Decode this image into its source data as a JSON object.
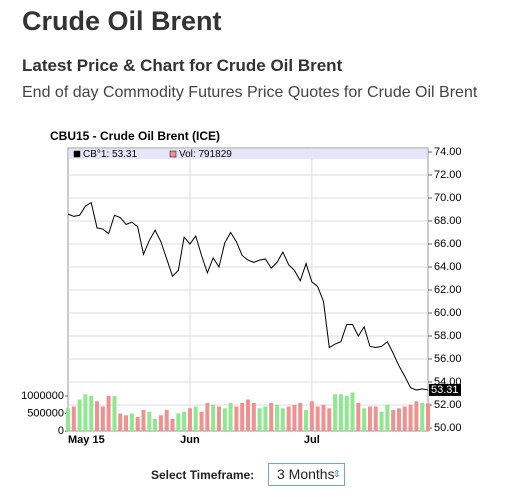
{
  "page": {
    "title": "Crude Oil Brent",
    "subtitle": "Latest Price & Chart for Crude Oil Brent",
    "description": "End of day Commodity Futures Price Quotes for Crude Oil Brent",
    "timeframe_label": "Select Timeframe:",
    "timeframe_value": "3 Months"
  },
  "chart_data": {
    "type": "line",
    "title": "CBU15 - Crude Oil Brent (ICE)",
    "legend": [
      "CB°1: 53.31",
      "Vol: 791829"
    ],
    "categories": [
      "May 15",
      null,
      null,
      null,
      null,
      null,
      null,
      null,
      null,
      null,
      null,
      null,
      null,
      null,
      null,
      null,
      null,
      null,
      null,
      null,
      null,
      "Jun",
      null,
      null,
      null,
      null,
      null,
      null,
      null,
      null,
      null,
      null,
      null,
      null,
      null,
      null,
      null,
      null,
      null,
      null,
      null,
      null,
      "Jul",
      null,
      null,
      null,
      null,
      null,
      null,
      null,
      null,
      null,
      null,
      null,
      null,
      null,
      null,
      null,
      null,
      null,
      null,
      null,
      null
    ],
    "series": [
      {
        "name": "CB°1",
        "color": "#000000",
        "values": [
          68.6,
          68.4,
          68.5,
          69.3,
          69.6,
          67.4,
          67.3,
          66.9,
          68.5,
          68.3,
          67.7,
          67.9,
          67.5,
          65.1,
          66.3,
          67.2,
          66.2,
          64.7,
          63.2,
          63.7,
          66.6,
          66.0,
          66.7,
          65.0,
          63.5,
          64.8,
          64.0,
          66.1,
          67.0,
          66.2,
          65.0,
          64.6,
          64.4,
          64.6,
          64.7,
          63.9,
          64.4,
          65.3,
          64.2,
          63.7,
          62.8,
          64.3,
          62.7,
          62.3,
          61.0,
          57.0,
          57.3,
          57.5,
          59.0,
          59.0,
          58.0,
          58.8,
          57.1,
          57.0,
          57.1,
          57.5,
          56.5,
          55.4,
          54.5,
          53.5,
          53.3,
          53.4,
          53.31
        ]
      },
      {
        "name": "Vol",
        "type": "bar",
        "axis": "y2",
        "colors": [
          "#8fe88f",
          "#f09090"
        ],
        "values": [
          650000,
          700000,
          900000,
          1050000,
          1000000,
          850000,
          700000,
          1000000,
          1000000,
          500000,
          450000,
          500000,
          400000,
          600000,
          550000,
          350000,
          450000,
          600000,
          350000,
          500000,
          550000,
          650000,
          700000,
          550000,
          800000,
          750000,
          700000,
          650000,
          800000,
          700000,
          800000,
          900000,
          800000,
          650000,
          700000,
          800000,
          750000,
          650000,
          700000,
          750000,
          800000,
          600000,
          850000,
          700000,
          750000,
          650000,
          1050000,
          1050000,
          1000000,
          1100000,
          800000,
          650000,
          700000,
          700000,
          550000,
          750000,
          600000,
          650000,
          700000,
          750000,
          850000,
          800000,
          791829
        ]
      }
    ],
    "ylim": [
      50,
      74
    ],
    "yticks": [
      {
        "value": 50,
        "label": "50.00"
      },
      {
        "value": 52,
        "label": "52.00"
      },
      {
        "value": 54,
        "label": "54.00"
      },
      {
        "value": 56,
        "label": "56.00"
      },
      {
        "value": 58,
        "label": "58.00"
      },
      {
        "value": 60,
        "label": "60.00"
      },
      {
        "value": 62,
        "label": "62.00"
      },
      {
        "value": 64,
        "label": "64.00"
      },
      {
        "value": 66,
        "label": "66.00"
      },
      {
        "value": 68,
        "label": "68.00"
      },
      {
        "value": 70,
        "label": "70.00"
      },
      {
        "value": 72,
        "label": "72.00"
      },
      {
        "value": 74,
        "label": "74.00"
      }
    ],
    "y2lim": [
      0,
      1000000
    ],
    "y2ticks": [
      0,
      500000,
      1000000
    ],
    "grid": true
  }
}
